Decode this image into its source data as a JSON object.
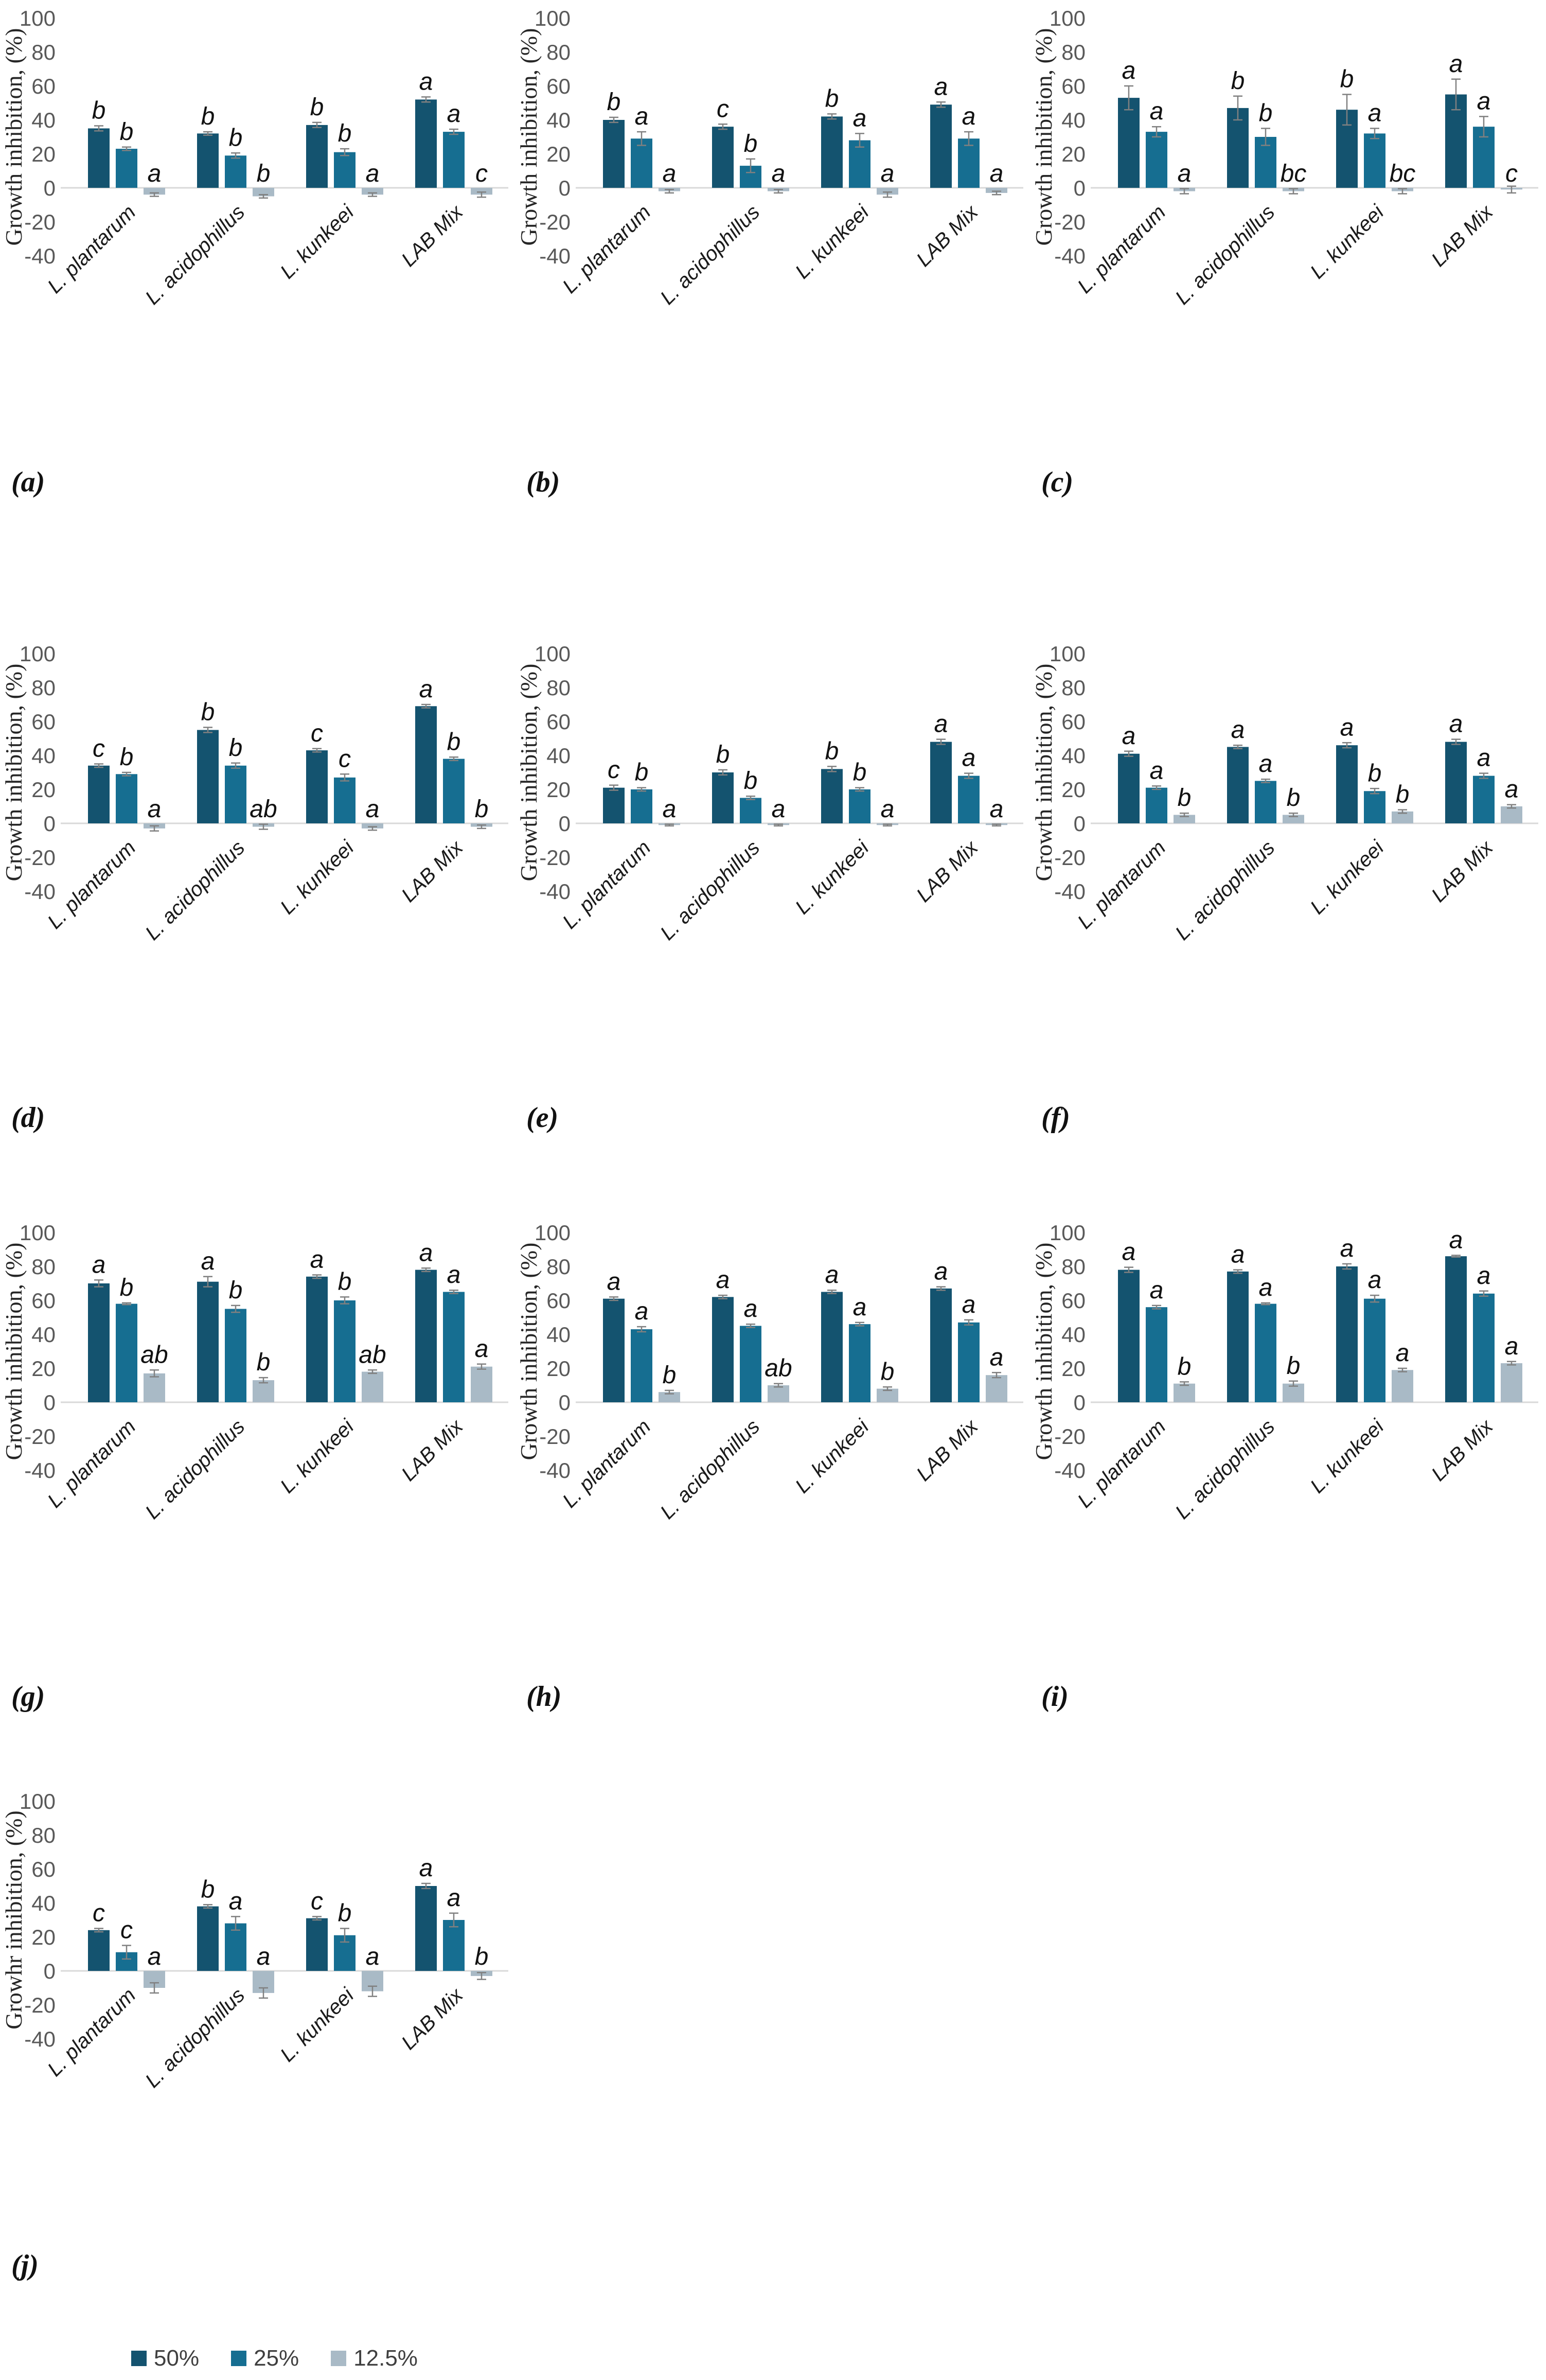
{
  "figure": {
    "description": "Growth inhibition of bar panels (a)-(j)"
  },
  "colors": {
    "series": [
      "#14536f",
      "#166e91",
      "#a9bac6"
    ],
    "axis_line": "#d9d9d9",
    "tick_text": "#595959",
    "error_bar": "#808080",
    "background": "#ffffff"
  },
  "legend": {
    "items": [
      {
        "label": "50%",
        "color": "#14536f"
      },
      {
        "label": "25%",
        "color": "#166e91"
      },
      {
        "label": "12.5%",
        "color": "#a9bac6"
      }
    ]
  },
  "chart_data": [
    {
      "id": "a",
      "type": "bar",
      "panel_label": "(a)",
      "ylabel": "Growth inhibition, (%)",
      "ylim": [
        -40,
        100
      ],
      "yticks": [
        100,
        80,
        60,
        40,
        20,
        0,
        -20,
        -40
      ],
      "categories": [
        "L. plantarum",
        "L. acidophillus",
        "L. kunkeei",
        "LAB Mix"
      ],
      "series_names": [
        "50%",
        "25%",
        "12.5%"
      ],
      "groups": [
        {
          "category": "L. plantarum",
          "values": [
            35,
            23,
            -4
          ],
          "errors": [
            1.5,
            1,
            1
          ],
          "letters": [
            "b",
            "b",
            "a"
          ]
        },
        {
          "category": "L. acidophillus",
          "values": [
            32,
            19,
            -5
          ],
          "errors": [
            1,
            1.5,
            1
          ],
          "letters": [
            "b",
            "b",
            "b"
          ]
        },
        {
          "category": "L. kunkeei",
          "values": [
            37,
            21,
            -4
          ],
          "errors": [
            1.5,
            2,
            1
          ],
          "letters": [
            "b",
            "b",
            "a"
          ]
        },
        {
          "category": "LAB Mix",
          "values": [
            52,
            33,
            -4
          ],
          "errors": [
            1.5,
            1.5,
            1.5
          ],
          "letters": [
            "a",
            "a",
            "c"
          ]
        }
      ]
    },
    {
      "id": "b",
      "type": "bar",
      "panel_label": "(b)",
      "ylabel": "Growth inhibition, (%)",
      "ylim": [
        -40,
        100
      ],
      "yticks": [
        100,
        80,
        60,
        40,
        20,
        0,
        -20,
        -40
      ],
      "categories": [
        "L. plantarum",
        "L. acidophillus",
        "L. kunkeei",
        "LAB Mix"
      ],
      "series_names": [
        "50%",
        "25%",
        "12.5%"
      ],
      "groups": [
        {
          "category": "L. plantarum",
          "values": [
            40,
            29,
            -2
          ],
          "errors": [
            1.5,
            4,
            1
          ],
          "letters": [
            "b",
            "a",
            "a"
          ]
        },
        {
          "category": "L. acidophillus",
          "values": [
            36,
            13,
            -2
          ],
          "errors": [
            1.5,
            4,
            1
          ],
          "letters": [
            "c",
            "b",
            "a"
          ]
        },
        {
          "category": "L. kunkeei",
          "values": [
            42,
            28,
            -4
          ],
          "errors": [
            1.5,
            4,
            1.5
          ],
          "letters": [
            "b",
            "a",
            "a"
          ]
        },
        {
          "category": "LAB Mix",
          "values": [
            49,
            29,
            -3
          ],
          "errors": [
            1.5,
            4,
            1
          ],
          "letters": [
            "a",
            "a",
            "a"
          ]
        }
      ]
    },
    {
      "id": "c",
      "type": "bar",
      "panel_label": "(c)",
      "ylabel": "Growth inhibition, (%)",
      "ylim": [
        -40,
        100
      ],
      "yticks": [
        100,
        80,
        60,
        40,
        20,
        0,
        -20,
        -40
      ],
      "categories": [
        "L. plantarum",
        "L. acidophillus",
        "L. kunkeei",
        "LAB Mix"
      ],
      "series_names": [
        "50%",
        "25%",
        "12.5%"
      ],
      "groups": [
        {
          "category": "L. plantarum",
          "values": [
            53,
            33,
            -2
          ],
          "errors": [
            7,
            3,
            1.5
          ],
          "letters": [
            "a",
            "a",
            "a"
          ]
        },
        {
          "category": "L. acidophillus",
          "values": [
            47,
            30,
            -2
          ],
          "errors": [
            7,
            5,
            1.5
          ],
          "letters": [
            "b",
            "b",
            "bc"
          ]
        },
        {
          "category": "L. kunkeei",
          "values": [
            46,
            32,
            -2
          ],
          "errors": [
            9,
            3,
            1.5
          ],
          "letters": [
            "b",
            "a",
            "bc"
          ]
        },
        {
          "category": "LAB Mix",
          "values": [
            55,
            36,
            -1
          ],
          "errors": [
            9,
            6,
            2
          ],
          "letters": [
            "a",
            "a",
            "c"
          ]
        }
      ]
    },
    {
      "id": "d",
      "type": "bar",
      "panel_label": "(d)",
      "ylabel": "Growth inhibition, (%)",
      "ylim": [
        -40,
        100
      ],
      "yticks": [
        100,
        80,
        60,
        40,
        20,
        0,
        -20,
        -40
      ],
      "categories": [
        "L. plantarum",
        "L. acidophillus",
        "L. kunkeei",
        "LAB Mix"
      ],
      "series_names": [
        "50%",
        "25%",
        "12.5%"
      ],
      "groups": [
        {
          "category": "L. plantarum",
          "values": [
            34,
            29,
            -3
          ],
          "errors": [
            1,
            1,
            1.5
          ],
          "letters": [
            "c",
            "b",
            "a"
          ]
        },
        {
          "category": "L. acidophillus",
          "values": [
            55,
            34,
            -2
          ],
          "errors": [
            1.5,
            1.5,
            1.5
          ],
          "letters": [
            "b",
            "b",
            "ab"
          ]
        },
        {
          "category": "L. kunkeei",
          "values": [
            43,
            27,
            -3
          ],
          "errors": [
            1,
            2,
            1
          ],
          "letters": [
            "c",
            "c",
            "a"
          ]
        },
        {
          "category": "LAB Mix",
          "values": [
            69,
            38,
            -2
          ],
          "errors": [
            1,
            1,
            1
          ],
          "letters": [
            "a",
            "b",
            "b"
          ]
        }
      ]
    },
    {
      "id": "e",
      "type": "bar",
      "panel_label": "(e)",
      "ylabel": "Growth inhibition, (%)",
      "ylim": [
        -40,
        100
      ],
      "yticks": [
        100,
        80,
        60,
        40,
        20,
        0,
        -20,
        -40
      ],
      "categories": [
        "L. plantarum",
        "L. acidophillus",
        "L. kunkeei",
        "LAB Mix"
      ],
      "series_names": [
        "50%",
        "25%",
        "12.5%"
      ],
      "groups": [
        {
          "category": "L. plantarum",
          "values": [
            21,
            20,
            -1
          ],
          "errors": [
            1.5,
            1,
            0.5
          ],
          "letters": [
            "c",
            "b",
            "a"
          ]
        },
        {
          "category": "L. acidophillus",
          "values": [
            30,
            15,
            -1
          ],
          "errors": [
            1.5,
            1,
            0.5
          ],
          "letters": [
            "b",
            "b",
            "a"
          ]
        },
        {
          "category": "L. kunkeei",
          "values": [
            32,
            20,
            -1
          ],
          "errors": [
            1.5,
            1,
            0.5
          ],
          "letters": [
            "b",
            "b",
            "a"
          ]
        },
        {
          "category": "LAB Mix",
          "values": [
            48,
            28,
            -1
          ],
          "errors": [
            1.5,
            1.5,
            0.5
          ],
          "letters": [
            "a",
            "a",
            "a"
          ]
        }
      ]
    },
    {
      "id": "f",
      "type": "bar",
      "panel_label": "(f)",
      "ylabel": "Growth inhibition, (%)",
      "ylim": [
        -40,
        100
      ],
      "yticks": [
        100,
        80,
        60,
        40,
        20,
        0,
        -20,
        -40
      ],
      "categories": [
        "L. plantarum",
        "L. acidophillus",
        "L. kunkeei",
        "LAB Mix"
      ],
      "series_names": [
        "50%",
        "25%",
        "12.5%"
      ],
      "groups": [
        {
          "category": "L. plantarum",
          "values": [
            41,
            21,
            5
          ],
          "errors": [
            1.5,
            1,
            1
          ],
          "letters": [
            "a",
            "a",
            "b"
          ]
        },
        {
          "category": "L. acidophillus",
          "values": [
            45,
            25,
            5
          ],
          "errors": [
            1,
            1,
            1
          ],
          "letters": [
            "a",
            "a",
            "b"
          ]
        },
        {
          "category": "L. kunkeei",
          "values": [
            46,
            19,
            7
          ],
          "errors": [
            1.5,
            1.5,
            1
          ],
          "letters": [
            "a",
            "b",
            "b"
          ]
        },
        {
          "category": "LAB Mix",
          "values": [
            48,
            28,
            10
          ],
          "errors": [
            1.5,
            1.5,
            1
          ],
          "letters": [
            "a",
            "a",
            "a"
          ]
        }
      ]
    },
    {
      "id": "g",
      "type": "bar",
      "panel_label": "(g)",
      "ylabel": "Growth inhibition, (%)",
      "ylim": [
        -40,
        100
      ],
      "yticks": [
        100,
        80,
        60,
        40,
        20,
        0,
        -20,
        -40
      ],
      "categories": [
        "L. plantarum",
        "L. acidophillus",
        "L. kunkeei",
        "LAB Mix"
      ],
      "series_names": [
        "50%",
        "25%",
        "12.5%"
      ],
      "groups": [
        {
          "category": "L. plantarum",
          "values": [
            70,
            58,
            17
          ],
          "errors": [
            2,
            0.5,
            2
          ],
          "letters": [
            "a",
            "b",
            "ab"
          ]
        },
        {
          "category": "L. acidophillus",
          "values": [
            71,
            55,
            13
          ],
          "errors": [
            3,
            2,
            1.5
          ],
          "letters": [
            "a",
            "b",
            "b"
          ]
        },
        {
          "category": "L. kunkeei",
          "values": [
            74,
            60,
            18
          ],
          "errors": [
            1,
            2,
            1
          ],
          "letters": [
            "a",
            "b",
            "ab"
          ]
        },
        {
          "category": "LAB Mix",
          "values": [
            78,
            65,
            21
          ],
          "errors": [
            1,
            1,
            1.5
          ],
          "letters": [
            "a",
            "a",
            "a"
          ]
        }
      ]
    },
    {
      "id": "h",
      "type": "bar",
      "panel_label": "(h)",
      "ylabel": "Growth inhibition, (%)",
      "ylim": [
        -40,
        100
      ],
      "yticks": [
        100,
        80,
        60,
        40,
        20,
        0,
        -20,
        -40
      ],
      "categories": [
        "L. plantarum",
        "L. acidophillus",
        "L. kunkeei",
        "LAB Mix"
      ],
      "series_names": [
        "50%",
        "25%",
        "12.5%"
      ],
      "groups": [
        {
          "category": "L. plantarum",
          "values": [
            61,
            43,
            6
          ],
          "errors": [
            1,
            1.5,
            1
          ],
          "letters": [
            "a",
            "a",
            "b"
          ]
        },
        {
          "category": "L. acidophillus",
          "values": [
            62,
            45,
            10
          ],
          "errors": [
            1,
            1,
            1
          ],
          "letters": [
            "a",
            "a",
            "ab"
          ]
        },
        {
          "category": "L. kunkeei",
          "values": [
            65,
            46,
            8
          ],
          "errors": [
            1,
            1,
            1
          ],
          "letters": [
            "a",
            "a",
            "b"
          ]
        },
        {
          "category": "LAB Mix",
          "values": [
            67,
            47,
            16
          ],
          "errors": [
            1,
            1.5,
            1.5
          ],
          "letters": [
            "a",
            "a",
            "a"
          ]
        }
      ]
    },
    {
      "id": "i",
      "type": "bar",
      "panel_label": "(i)",
      "ylabel": "Growth inhibition, (%)",
      "ylim": [
        -40,
        100
      ],
      "yticks": [
        100,
        80,
        60,
        40,
        20,
        0,
        -20,
        -40
      ],
      "categories": [
        "L. plantarum",
        "L. acidophillus",
        "L. kunkeei",
        "LAB Mix"
      ],
      "series_names": [
        "50%",
        "25%",
        "12.5%"
      ],
      "groups": [
        {
          "category": "L. plantarum",
          "values": [
            78,
            56,
            11
          ],
          "errors": [
            1.5,
            1,
            1
          ],
          "letters": [
            "a",
            "a",
            "b"
          ]
        },
        {
          "category": "L. acidophillus",
          "values": [
            77,
            58,
            11
          ],
          "errors": [
            1,
            0.5,
            1.5
          ],
          "letters": [
            "a",
            "a",
            "b"
          ]
        },
        {
          "category": "L. kunkeei",
          "values": [
            80,
            61,
            19
          ],
          "errors": [
            1.5,
            2,
            1
          ],
          "letters": [
            "a",
            "a",
            "a"
          ]
        },
        {
          "category": "LAB Mix",
          "values": [
            86,
            64,
            23
          ],
          "errors": [
            0.5,
            1.5,
            1
          ],
          "letters": [
            "a",
            "a",
            "a"
          ]
        }
      ]
    },
    {
      "id": "j",
      "type": "bar",
      "panel_label": "(j)",
      "ylabel": "Growhr inhibition, (%)",
      "ylim": [
        -40,
        100
      ],
      "yticks": [
        100,
        80,
        60,
        40,
        20,
        0,
        -20,
        -40
      ],
      "categories": [
        "L. plantarum",
        "L. acidophillus",
        "L. kunkeei",
        "LAB Mix"
      ],
      "series_names": [
        "50%",
        "25%",
        "12.5%"
      ],
      "groups": [
        {
          "category": "L. plantarum",
          "values": [
            24,
            11,
            -10
          ],
          "errors": [
            1,
            4,
            3
          ],
          "letters": [
            "c",
            "c",
            "a"
          ]
        },
        {
          "category": "L. acidophillus",
          "values": [
            38,
            28,
            -13
          ],
          "errors": [
            1,
            4,
            3
          ],
          "letters": [
            "b",
            "a",
            "a"
          ]
        },
        {
          "category": "L. kunkeei",
          "values": [
            31,
            21,
            -12
          ],
          "errors": [
            1,
            4,
            3
          ],
          "letters": [
            "c",
            "b",
            "a"
          ]
        },
        {
          "category": "LAB Mix",
          "values": [
            50,
            30,
            -3
          ],
          "errors": [
            1.5,
            4,
            2
          ],
          "letters": [
            "a",
            "a",
            "b"
          ]
        }
      ]
    }
  ]
}
